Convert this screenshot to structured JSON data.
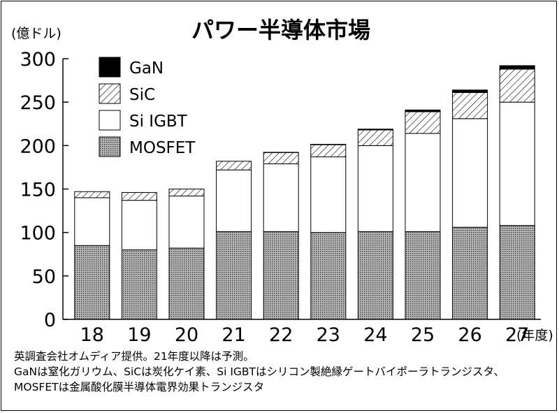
{
  "chart_data": {
    "type": "bar",
    "stacked": true,
    "title": "パワー半導体市場",
    "ylabel": "(億ドル)",
    "xlabel_suffix": "(年度)",
    "categories": [
      "18",
      "19",
      "20",
      "21",
      "22",
      "23",
      "24",
      "25",
      "26",
      "27"
    ],
    "ylim": [
      0,
      300
    ],
    "yticks": [
      "0",
      "50",
      "100",
      "150",
      "200",
      "250",
      "300"
    ],
    "grid": false,
    "legend_position": "top-left",
    "series": [
      {
        "name": "MOSFET",
        "color": "#9a9a9a",
        "pattern": "dots",
        "values": [
          85,
          80,
          82,
          101,
          101,
          100,
          101,
          101,
          106,
          108
        ]
      },
      {
        "name": "Si IGBT",
        "color": "#ffffff",
        "pattern": "none",
        "values": [
          55,
          57,
          60,
          71,
          78,
          87,
          99,
          113,
          125,
          142
        ]
      },
      {
        "name": "SiC",
        "color": "#ffffff",
        "pattern": "hatch",
        "values": [
          7,
          9,
          8,
          10,
          13,
          14,
          18,
          25,
          30,
          38
        ]
      },
      {
        "name": "GaN",
        "color": "#000000",
        "pattern": "solid",
        "values": [
          0,
          0,
          0,
          0,
          0.3,
          0.5,
          1,
          2,
          3,
          4
        ]
      }
    ],
    "notes": [
      "英調査会社オムディア提供。21年度以降は予測。",
      "GaNは窒化ガリウム、SiCは炭化ケイ素、Si IGBTはシリコン製絶縁ゲートバイポーラトランジスタ、",
      "MOSFETは金属酸化膜半導体電界効果トランジスタ"
    ]
  }
}
